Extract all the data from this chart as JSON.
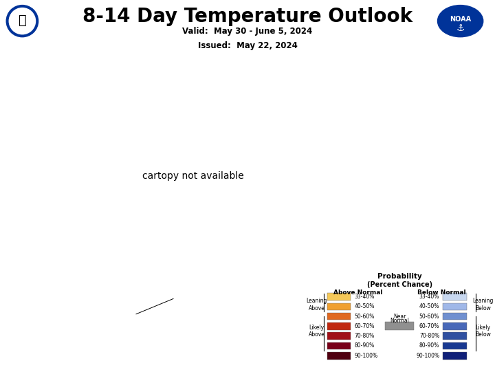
{
  "title": "8-14 Day Temperature Outlook",
  "valid_text": "Valid:  May 30 - June 5, 2024",
  "issued_text": "Issued:  May 22, 2024",
  "bg_color": "#ffffff",
  "ocean_color": "#b8d4e8",
  "land_bg_color": "#f5c842",
  "above_light": "#f5c050",
  "above_med": "#e88820",
  "above_dark": "#c83010",
  "above_vdark": "#a01020",
  "below_light": "#b8cce8",
  "below_med": "#8aaad8",
  "below_dark": "#4060b0",
  "near_normal": "#909090",
  "border_color": "#444444",
  "label_color_dark": "#111111",
  "label_white": "#ffffff",
  "legend_above_colors": [
    "#f5c858",
    "#f0a030",
    "#e06820",
    "#c02810",
    "#a01018",
    "#780018",
    "#500010"
  ],
  "legend_below_colors": [
    "#c8d8f0",
    "#a0b8e8",
    "#7090d0",
    "#4868b8",
    "#3050a0",
    "#183890",
    "#102078"
  ],
  "legend_labels": [
    "33-40%",
    "40-50%",
    "50-60%",
    "60-70%",
    "70-80%",
    "80-90%",
    "90-100%"
  ]
}
